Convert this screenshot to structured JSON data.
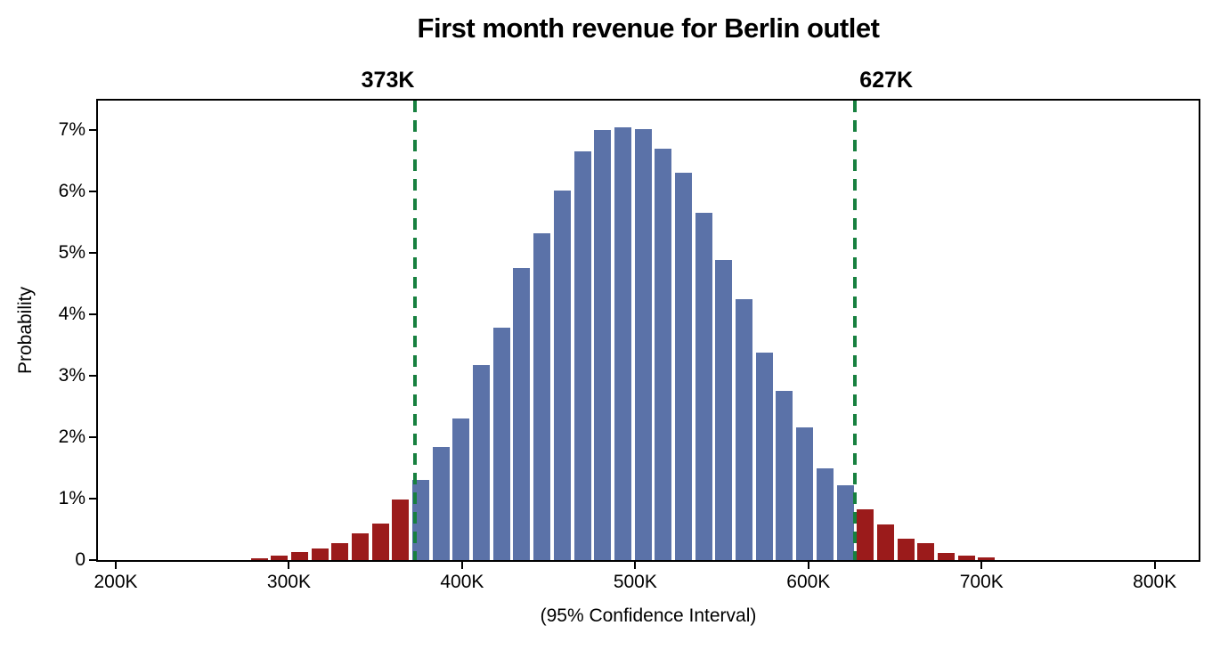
{
  "colors": {
    "bar_within_ci": "#5b72a8",
    "bar_outside_ci": "#9b1b1b",
    "ci_line": "#17803f",
    "axis": "#000000",
    "text": "#000000",
    "background": "#ffffff"
  },
  "chart_data": {
    "type": "bar",
    "subtype": "histogram",
    "title": "First month revenue for Berlin outlet",
    "xlabel": "(95% Confidence Interval)",
    "ylabel": "Probability",
    "grid": false,
    "legend": "none",
    "x_unit": "K",
    "y_unit": "%",
    "xlim_k": [
      189.7,
      825.3
    ],
    "ylim_pct": [
      0,
      7.48
    ],
    "bin_width_k": 11.67,
    "x_ticks": [
      {
        "value_k": 200,
        "label": "200K"
      },
      {
        "value_k": 300,
        "label": "300K"
      },
      {
        "value_k": 400,
        "label": "400K"
      },
      {
        "value_k": 500,
        "label": "500K"
      },
      {
        "value_k": 600,
        "label": "600K"
      },
      {
        "value_k": 700,
        "label": "700K"
      },
      {
        "value_k": 800,
        "label": "800K"
      }
    ],
    "y_ticks": [
      {
        "value_pct": 0,
        "label": "0"
      },
      {
        "value_pct": 1,
        "label": "1%"
      },
      {
        "value_pct": 2,
        "label": "2%"
      },
      {
        "value_pct": 3,
        "label": "3%"
      },
      {
        "value_pct": 4,
        "label": "4%"
      },
      {
        "value_pct": 5,
        "label": "5%"
      },
      {
        "value_pct": 6,
        "label": "6%"
      },
      {
        "value_pct": 7,
        "label": "7%"
      }
    ],
    "ci_lines": [
      {
        "value_k": 373,
        "label": "373K",
        "side": "low"
      },
      {
        "value_k": 627,
        "label": "627K",
        "side": "high"
      }
    ],
    "bars": [
      {
        "center_k": 282.8,
        "p_pct": 0.03,
        "region": "below_ci"
      },
      {
        "center_k": 294.5,
        "p_pct": 0.07,
        "region": "below_ci"
      },
      {
        "center_k": 306.2,
        "p_pct": 0.13,
        "region": "below_ci"
      },
      {
        "center_k": 317.8,
        "p_pct": 0.19,
        "region": "below_ci"
      },
      {
        "center_k": 329.5,
        "p_pct": 0.27,
        "region": "below_ci"
      },
      {
        "center_k": 341.2,
        "p_pct": 0.43,
        "region": "below_ci"
      },
      {
        "center_k": 352.8,
        "p_pct": 0.59,
        "region": "below_ci"
      },
      {
        "center_k": 364.5,
        "p_pct": 0.98,
        "region": "below_ci"
      },
      {
        "center_k": 376.2,
        "p_pct": 1.31,
        "region": "within_ci"
      },
      {
        "center_k": 387.8,
        "p_pct": 1.84,
        "region": "within_ci"
      },
      {
        "center_k": 399.5,
        "p_pct": 2.31,
        "region": "within_ci"
      },
      {
        "center_k": 411.2,
        "p_pct": 3.18,
        "region": "within_ci"
      },
      {
        "center_k": 422.8,
        "p_pct": 3.78,
        "region": "within_ci"
      },
      {
        "center_k": 434.5,
        "p_pct": 4.76,
        "region": "within_ci"
      },
      {
        "center_k": 446.2,
        "p_pct": 5.32,
        "region": "within_ci"
      },
      {
        "center_k": 457.8,
        "p_pct": 6.01,
        "region": "within_ci"
      },
      {
        "center_k": 469.5,
        "p_pct": 6.65,
        "region": "within_ci"
      },
      {
        "center_k": 481.2,
        "p_pct": 7.0,
        "region": "within_ci"
      },
      {
        "center_k": 492.8,
        "p_pct": 7.05,
        "region": "within_ci"
      },
      {
        "center_k": 504.5,
        "p_pct": 7.02,
        "region": "within_ci"
      },
      {
        "center_k": 516.2,
        "p_pct": 6.69,
        "region": "within_ci"
      },
      {
        "center_k": 527.8,
        "p_pct": 6.31,
        "region": "within_ci"
      },
      {
        "center_k": 539.5,
        "p_pct": 5.65,
        "region": "within_ci"
      },
      {
        "center_k": 551.2,
        "p_pct": 4.88,
        "region": "within_ci"
      },
      {
        "center_k": 562.8,
        "p_pct": 4.25,
        "region": "within_ci"
      },
      {
        "center_k": 574.5,
        "p_pct": 3.38,
        "region": "within_ci"
      },
      {
        "center_k": 586.2,
        "p_pct": 2.75,
        "region": "within_ci"
      },
      {
        "center_k": 597.8,
        "p_pct": 2.16,
        "region": "within_ci"
      },
      {
        "center_k": 609.5,
        "p_pct": 1.5,
        "region": "within_ci"
      },
      {
        "center_k": 621.2,
        "p_pct": 1.22,
        "region": "within_ci"
      },
      {
        "center_k": 632.8,
        "p_pct": 0.83,
        "region": "above_ci"
      },
      {
        "center_k": 644.5,
        "p_pct": 0.58,
        "region": "above_ci"
      },
      {
        "center_k": 656.2,
        "p_pct": 0.35,
        "region": "above_ci"
      },
      {
        "center_k": 667.8,
        "p_pct": 0.27,
        "region": "above_ci"
      },
      {
        "center_k": 679.5,
        "p_pct": 0.12,
        "region": "above_ci"
      },
      {
        "center_k": 691.2,
        "p_pct": 0.07,
        "region": "above_ci"
      },
      {
        "center_k": 702.8,
        "p_pct": 0.05,
        "region": "above_ci"
      }
    ]
  }
}
